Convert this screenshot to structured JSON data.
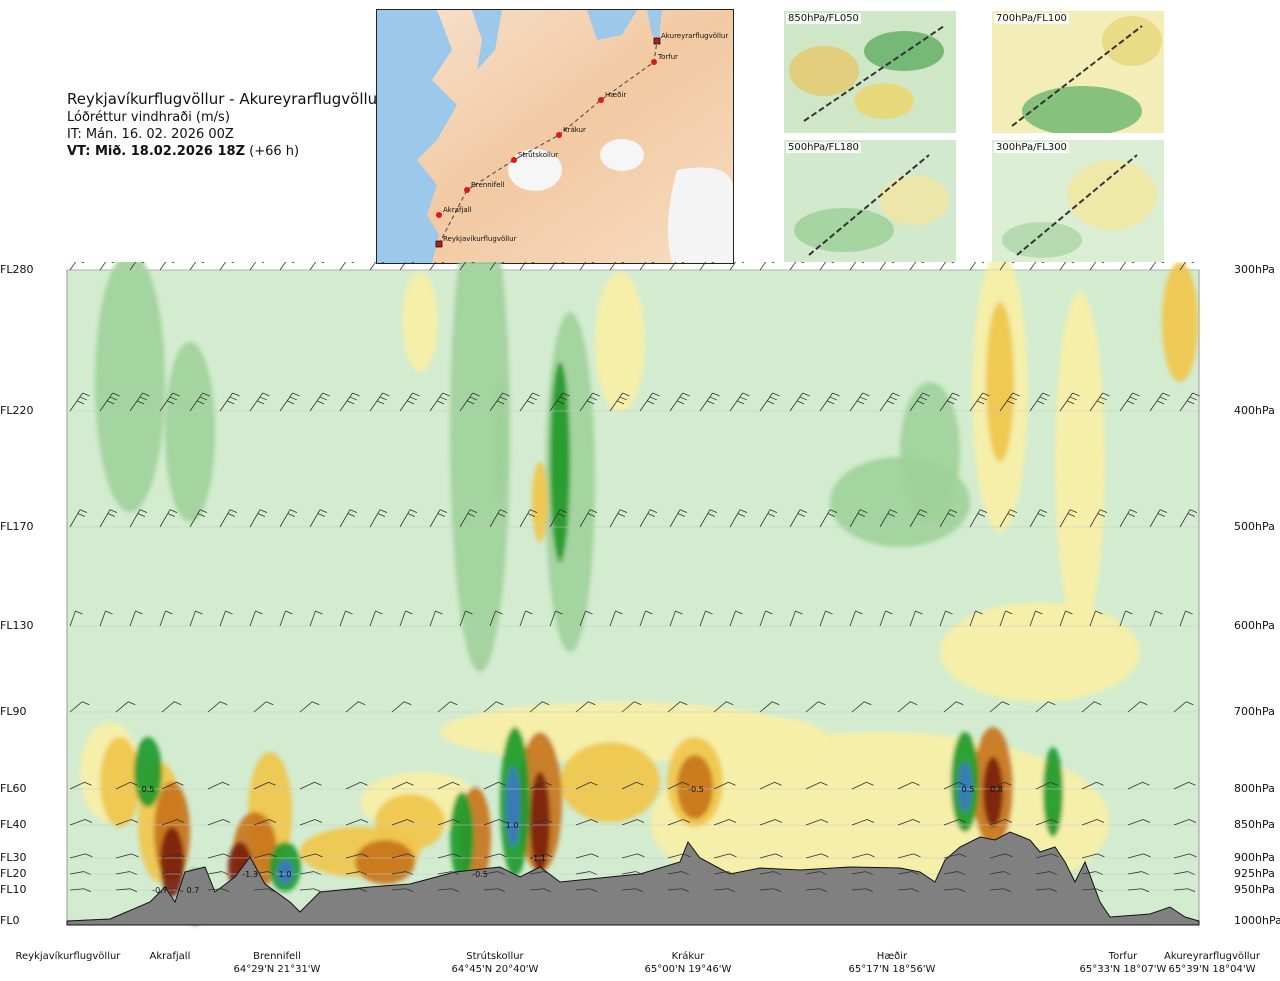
{
  "header": {
    "route": "Reykjavíkurflugvöllur - Akureyrarflugvöllur",
    "variable": "Lóðréttur vindhraði (m/s)",
    "issued": "IT: Mán. 16. 02. 2026 00Z",
    "valid_bold": "VT: Mið. 18.02.2026 18Z",
    "valid_offset": "(+66 h)"
  },
  "route_map": {
    "points": [
      "Akureyrarflugvöllur",
      "Torfur",
      "Hæðir",
      "Krákur",
      "Strútskollur",
      "Brennifell",
      "Akrafjall",
      "Reykjavíkurflugvöllur"
    ]
  },
  "level_panels": [
    {
      "label": "850hPa/FL050"
    },
    {
      "label": "700hPa/FL100"
    },
    {
      "label": "500hPa/FL180"
    },
    {
      "label": "300hPa/FL300"
    }
  ],
  "flight_levels": [
    "FL280",
    "FL220",
    "FL170",
    "FL130",
    "FL90",
    "FL60",
    "FL40",
    "FL30",
    "FL20",
    "FL10",
    "FL0"
  ],
  "pressure_levels": [
    "300hPa",
    "400hPa",
    "500hPa",
    "600hPa",
    "700hPa",
    "800hPa",
    "850hPa",
    "900hPa",
    "925hPa",
    "950hPa",
    "1000hPa"
  ],
  "locations": [
    {
      "name": "Reykjavíkurflugvöllur",
      "coord": ""
    },
    {
      "name": "Akrafjall",
      "coord": ""
    },
    {
      "name": "Brennifell",
      "coord": "64°29'N 21°31'W"
    },
    {
      "name": "Strútskollur",
      "coord": "64°45'N 20°40'W"
    },
    {
      "name": "Krákur",
      "coord": "65°00'N 19°46'W"
    },
    {
      "name": "Hæðir",
      "coord": "65°17'N 18°56'W"
    },
    {
      "name": "Torfur",
      "coord": "65°33'N 18°07'W"
    },
    {
      "name": "Akureyrarflugvöllur",
      "coord": "65°39'N 18°04'W"
    }
  ],
  "chart_data": {
    "type": "heatmap",
    "title": "Reykjavíkurflugvöllur - Akureyrarflugvöllur",
    "subtitle": "Lóðréttur vindhraði (m/s)",
    "y_left_ticks": [
      "FL280",
      "FL220",
      "FL170",
      "FL130",
      "FL90",
      "FL60",
      "FL40",
      "FL30",
      "FL20",
      "FL10",
      "FL0"
    ],
    "y_right_ticks": [
      "300hPa",
      "400hPa",
      "500hPa",
      "600hPa",
      "700hPa",
      "800hPa",
      "850hPa",
      "900hPa",
      "925hPa",
      "950hPa",
      "1000hPa"
    ],
    "x_ticks": [
      "Reykjavíkurflugvöllur",
      "Akrafjall",
      "Brennifell",
      "Strútskollur",
      "Krákur",
      "Hæðir",
      "Torfur",
      "Akureyrarflugvöllur"
    ],
    "colors": {
      "strong_down": "#7a1f0a",
      "down": "#c8751b",
      "weak_down": "#f0c64a",
      "slight_down": "#f7efa6",
      "neutral": "#d3ecd0",
      "weak_up": "#9fd19a",
      "up": "#1f9a2a",
      "strong_up": "#3a78c2",
      "terrain": "#808080"
    },
    "annotations": [
      {
        "text": "0.5",
        "x": "Akrafjall",
        "level": "FL60"
      },
      {
        "text": "-0.7",
        "x": "Akrafjall",
        "level": "FL10"
      },
      {
        "text": "0.7",
        "x": "Akrafjall",
        "level": "FL10"
      },
      {
        "text": "-1.3",
        "x": "Brennifell",
        "level": "FL20"
      },
      {
        "text": "1.0",
        "x": "Brennifell",
        "level": "FL20"
      },
      {
        "text": "1.0",
        "x": "Strútskollur",
        "level": "FL40"
      },
      {
        "text": "-1.1",
        "x": "Strútskollur",
        "level": "FL30"
      },
      {
        "text": "-0.5",
        "x": "Strútskollur",
        "level": "FL20"
      },
      {
        "text": "-0.5",
        "x": "Krákur",
        "level": "FL60"
      },
      {
        "text": "0.5",
        "x": "Hæðir",
        "level": "FL60"
      },
      {
        "text": "-0.8",
        "x": "Hæðir",
        "level": "FL60"
      }
    ]
  }
}
